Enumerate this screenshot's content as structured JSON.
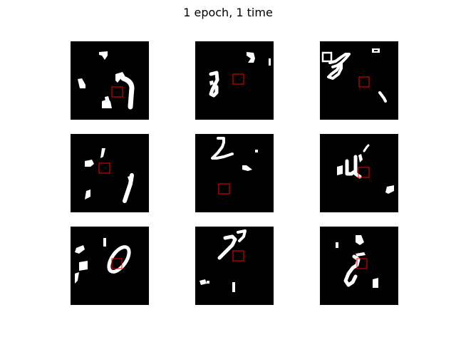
{
  "title": "1 epoch, 1 time",
  "grid": {
    "rows": 3,
    "cols": 3
  },
  "colors": {
    "background": "#000000",
    "foreground": "#ffffff",
    "marker": "#ff0000"
  }
}
